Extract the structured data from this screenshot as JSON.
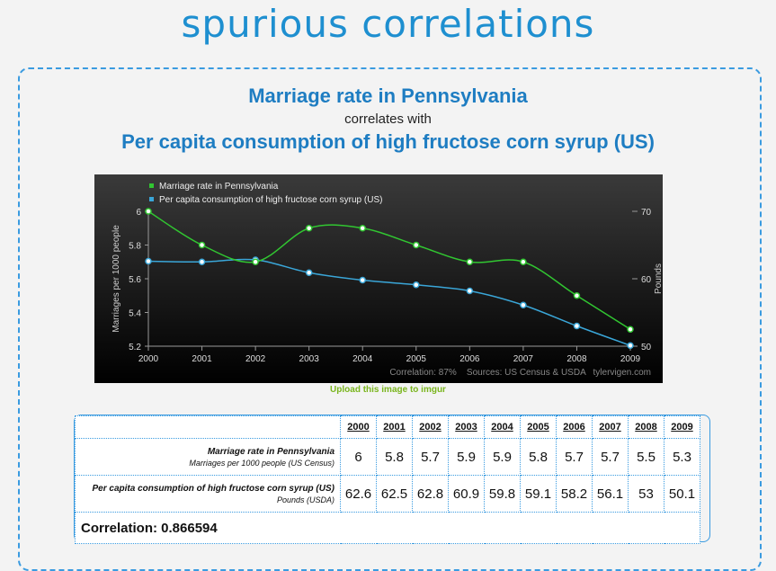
{
  "site": {
    "title": "spurious correlations"
  },
  "heading": {
    "series1": "Marriage rate in Pennsylvania",
    "connector": "correlates with",
    "series2": "Per capita consumption of high fructose corn syrup (US)"
  },
  "chart_data": {
    "type": "line",
    "x": [
      2000,
      2001,
      2002,
      2003,
      2004,
      2005,
      2006,
      2007,
      2008,
      2009
    ],
    "series": [
      {
        "name": "Marriage rate in Pennsylvania",
        "axis": "left",
        "color": "#31c631",
        "values": [
          6,
          5.8,
          5.7,
          5.9,
          5.9,
          5.8,
          5.7,
          5.7,
          5.5,
          5.3
        ]
      },
      {
        "name": "Per capita consumption of high fructose corn syrup (US)",
        "axis": "right",
        "color": "#3aa6d8",
        "values": [
          62.6,
          62.5,
          62.8,
          60.9,
          59.8,
          59.1,
          58.2,
          56.1,
          53,
          50.1
        ]
      }
    ],
    "ylabel_left": "Marriages per 1000 people",
    "ylabel_right": "Pounds",
    "ylim_left": [
      5.2,
      6
    ],
    "yticks_left": [
      "5.2",
      "5.4",
      "5.6",
      "5.8",
      "6"
    ],
    "ylim_right": [
      50,
      70
    ],
    "yticks_right": [
      "50",
      "60",
      "70"
    ],
    "footer": "Correlation: 87%    Sources: US Census & USDA   tylervigen.com",
    "legend_position": "top-left"
  },
  "upload_link": "Upload this image to imgur",
  "table": {
    "years": [
      "2000",
      "2001",
      "2002",
      "2003",
      "2004",
      "2005",
      "2006",
      "2007",
      "2008",
      "2009"
    ],
    "rows": [
      {
        "label": "Marriage rate in Pennsylvania",
        "sublabel": "Marriages per 1000 people (US Census)",
        "values": [
          "6",
          "5.8",
          "5.7",
          "5.9",
          "5.9",
          "5.8",
          "5.7",
          "5.7",
          "5.5",
          "5.3"
        ]
      },
      {
        "label": "Per capita consumption of high fructose corn syrup (US)",
        "sublabel": "Pounds (USDA)",
        "values": [
          "62.6",
          "62.5",
          "62.8",
          "60.9",
          "59.8",
          "59.1",
          "58.2",
          "56.1",
          "53",
          "50.1"
        ]
      }
    ],
    "correlation": "Correlation: 0.866594"
  }
}
